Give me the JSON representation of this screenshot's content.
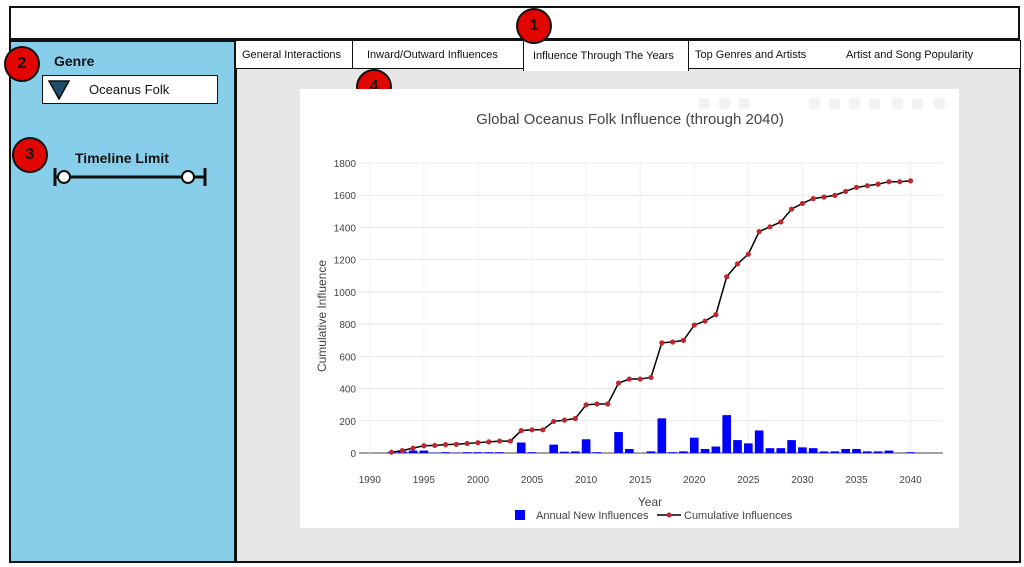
{
  "tabs": [
    {
      "label": "General Interactions"
    },
    {
      "label": "Inward/Outward Influences"
    },
    {
      "label": "Influence Through The Years"
    },
    {
      "label": "Top Genres and Artists"
    },
    {
      "label": "Artist and Song Popularity"
    }
  ],
  "active_tab": "Influence Through The Years",
  "sidebar": {
    "genre_label": "Genre",
    "genre_value": "Oceanus Folk",
    "timeline_label": "Timeline Limit"
  },
  "callouts": [
    "1",
    "2",
    "3",
    "4"
  ],
  "colors": {
    "sidebar_bg": "#87ceeb",
    "callout_red": "#e10600",
    "bar_blue": "#0000ff",
    "marker_red": "#c0272d",
    "line_black": "#000000"
  },
  "chart_data": {
    "type": "bar+line",
    "title": "Global Oceanus Folk Influence (through 2040)",
    "xlabel": "Year",
    "ylabel": "Cumulative Influence",
    "xlim": [
      1989,
      2043
    ],
    "ylim": [
      0,
      1800
    ],
    "xticks": [
      1990,
      1995,
      2000,
      2005,
      2010,
      2015,
      2020,
      2025,
      2030,
      2035,
      2040
    ],
    "yticks": [
      0,
      200,
      400,
      600,
      800,
      1000,
      1200,
      1400,
      1600,
      1800
    ],
    "grid": true,
    "legend_position": "bottom",
    "series": [
      {
        "name": "Annual New Influences",
        "kind": "bar",
        "x": [
          1992,
          1993,
          1994,
          1995,
          1996,
          1997,
          1998,
          1999,
          2000,
          2001,
          2002,
          2003,
          2004,
          2005,
          2006,
          2007,
          2008,
          2009,
          2010,
          2011,
          2012,
          2013,
          2014,
          2015,
          2016,
          2017,
          2018,
          2019,
          2020,
          2021,
          2022,
          2023,
          2024,
          2025,
          2026,
          2027,
          2028,
          2029,
          2030,
          2031,
          2032,
          2033,
          2034,
          2035,
          2036,
          2037,
          2038,
          2039,
          2040
        ],
        "values": [
          5,
          10,
          15,
          15,
          2,
          5,
          2,
          5,
          5,
          5,
          5,
          0,
          65,
          5,
          0,
          52,
          8,
          10,
          85,
          5,
          0,
          130,
          25,
          0,
          10,
          215,
          5,
          10,
          95,
          25,
          40,
          235,
          80,
          60,
          140,
          30,
          30,
          80,
          35,
          30,
          10,
          10,
          25,
          25,
          10,
          10,
          15,
          0,
          5
        ]
      },
      {
        "name": "Cumulative Influences",
        "kind": "line",
        "x": [
          1992,
          1993,
          1994,
          1995,
          1996,
          1997,
          1998,
          1999,
          2000,
          2001,
          2002,
          2003,
          2004,
          2005,
          2006,
          2007,
          2008,
          2009,
          2010,
          2011,
          2012,
          2013,
          2014,
          2015,
          2016,
          2017,
          2018,
          2019,
          2020,
          2021,
          2022,
          2023,
          2024,
          2025,
          2026,
          2027,
          2028,
          2029,
          2030,
          2031,
          2032,
          2033,
          2034,
          2035,
          2036,
          2037,
          2038,
          2039,
          2040
        ],
        "values": [
          5,
          15,
          30,
          45,
          47,
          52,
          54,
          59,
          64,
          69,
          74,
          74,
          139,
          144,
          144,
          196,
          204,
          214,
          299,
          304,
          304,
          434,
          459,
          459,
          469,
          684,
          689,
          699,
          794,
          819,
          859,
          1094,
          1174,
          1234,
          1374,
          1404,
          1434,
          1514,
          1549,
          1579,
          1589,
          1599,
          1624,
          1649,
          1659,
          1669,
          1684,
          1684,
          1689
        ]
      }
    ]
  }
}
